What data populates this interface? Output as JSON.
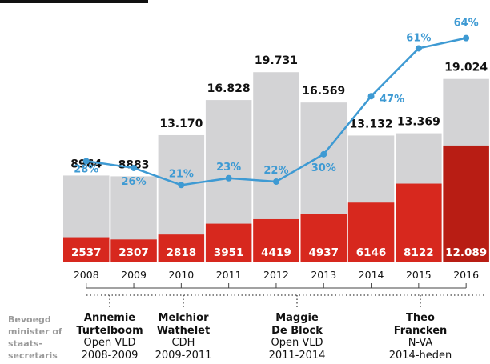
{
  "chart_data": {
    "type": "bar",
    "categories": [
      "2008",
      "2009",
      "2010",
      "2011",
      "2012",
      "2013",
      "2014",
      "2015",
      "2016"
    ],
    "series": [
      {
        "values": [
          8964,
          8883,
          13170,
          16828,
          19731,
          16569,
          13132,
          13369,
          19024
        ],
        "labels": [
          "8964",
          "8883",
          "13.170",
          "16.828",
          "19.731",
          "16.569",
          "13.132",
          "13.369",
          "19.024"
        ]
      },
      {
        "values": [
          2537,
          2307,
          2818,
          3951,
          4419,
          4937,
          6146,
          8122,
          12089
        ],
        "labels": [
          "2537",
          "2307",
          "2818",
          "3951",
          "4419",
          "4937",
          "6146",
          "8122",
          "12.089"
        ]
      },
      {
        "type": "line",
        "values": [
          28,
          26,
          21,
          23,
          22,
          30,
          47,
          61,
          64
        ],
        "labels": [
          "28%",
          "26%",
          "21%",
          "23%",
          "22%",
          "30%",
          "47%",
          "61%",
          "64%"
        ]
      }
    ],
    "ylim": [
      0,
      20000
    ],
    "line_ylim": [
      0,
      70
    ],
    "grid": false
  },
  "side_label": [
    "Bevoegd",
    "minister of",
    "staats-",
    "secretaris"
  ],
  "ministers": [
    {
      "lines": [
        "Annemie",
        "Turtelboom",
        "Open VLD",
        "2008-2009"
      ]
    },
    {
      "lines": [
        "Melchior",
        "Wathelet",
        "CDH",
        "2009-2011"
      ]
    },
    {
      "lines": [
        "Maggie",
        "De Block",
        "Open VLD",
        "2011-2014"
      ]
    },
    {
      "lines": [
        "Theo",
        "Francken",
        "N-VA",
        "2014-heden"
      ]
    }
  ],
  "colors": {
    "total_bar": "#d3d3d5",
    "sub_bar": "#d7281e",
    "sub_bar_dark": "#b81d14",
    "line": "#3e9ad3",
    "bracket": "#444444",
    "text": "#111111"
  }
}
